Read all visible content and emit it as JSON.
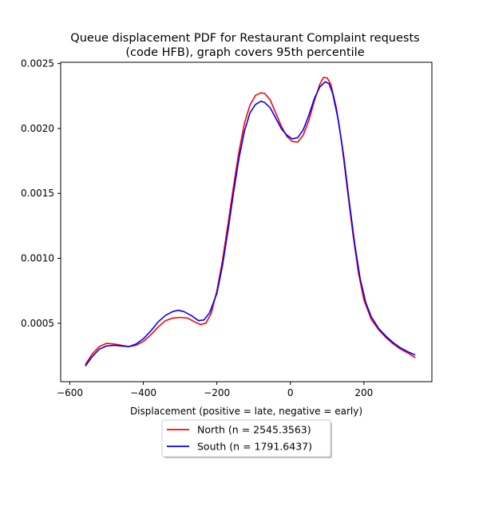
{
  "chart_data": {
    "type": "line",
    "title": "Queue displacement PDF for Restaurant Complaint  requests\n(code HFB), graph covers 95th percentile",
    "xlabel": "Displacement (positive = late, negative = early)",
    "ylabel": "",
    "xlim": [
      -625,
      385
    ],
    "ylim": [
      5e-05,
      0.00251
    ],
    "x_ticks": [
      -600,
      -400,
      -200,
      0,
      200
    ],
    "y_ticks": [
      0.0005,
      0.001,
      0.0015,
      0.002,
      0.0025
    ],
    "x_tick_labels": [
      "−600",
      "−400",
      "−200",
      "0",
      "200"
    ],
    "y_tick_labels": [
      "0.0005",
      "0.0010",
      "0.0015",
      "0.0020",
      "0.0025"
    ],
    "grid": false,
    "legend_position": "below-center",
    "series": [
      {
        "name": "North (n = 2545.3563)",
        "color": "#ff0000",
        "points": [
          [
            -558,
            0.00018
          ],
          [
            -540,
            0.00026
          ],
          [
            -520,
            0.00032
          ],
          [
            -500,
            0.000345
          ],
          [
            -480,
            0.00034
          ],
          [
            -460,
            0.00033
          ],
          [
            -440,
            0.00032
          ],
          [
            -420,
            0.00033
          ],
          [
            -400,
            0.00036
          ],
          [
            -380,
            0.00041
          ],
          [
            -360,
            0.00047
          ],
          [
            -340,
            0.00052
          ],
          [
            -320,
            0.00054
          ],
          [
            -300,
            0.000545
          ],
          [
            -280,
            0.00054
          ],
          [
            -260,
            0.00051
          ],
          [
            -245,
            0.00049
          ],
          [
            -230,
            0.0005
          ],
          [
            -215,
            0.00058
          ],
          [
            -200,
            0.00075
          ],
          [
            -185,
            0.00098
          ],
          [
            -170,
            0.00126
          ],
          [
            -155,
            0.00155
          ],
          [
            -140,
            0.00182
          ],
          [
            -125,
            0.00204
          ],
          [
            -110,
            0.00218
          ],
          [
            -95,
            0.002255
          ],
          [
            -80,
            0.002275
          ],
          [
            -70,
            0.00227
          ],
          [
            -55,
            0.00222
          ],
          [
            -40,
            0.00212
          ],
          [
            -25,
            0.00202
          ],
          [
            -10,
            0.00194
          ],
          [
            5,
            0.0019
          ],
          [
            20,
            0.001895
          ],
          [
            35,
            0.00195
          ],
          [
            50,
            0.00206
          ],
          [
            65,
            0.00221
          ],
          [
            80,
            0.00234
          ],
          [
            90,
            0.002393
          ],
          [
            100,
            0.00239
          ],
          [
            110,
            0.00234
          ],
          [
            125,
            0.00216
          ],
          [
            140,
            0.00188
          ],
          [
            155,
            0.00153
          ],
          [
            170,
            0.00119
          ],
          [
            185,
            0.00089
          ],
          [
            200,
            0.00068
          ],
          [
            220,
            0.00053
          ],
          [
            240,
            0.00045
          ],
          [
            260,
            0.00039
          ],
          [
            280,
            0.00034
          ],
          [
            300,
            0.0003
          ],
          [
            320,
            0.00027
          ],
          [
            340,
            0.000235
          ]
        ]
      },
      {
        "name": "South (n = 1791.6437)",
        "color": "#0000ff",
        "points": [
          [
            -558,
            0.00017
          ],
          [
            -540,
            0.00024
          ],
          [
            -520,
            0.0003
          ],
          [
            -500,
            0.000325
          ],
          [
            -480,
            0.00033
          ],
          [
            -460,
            0.000325
          ],
          [
            -440,
            0.00032
          ],
          [
            -420,
            0.00034
          ],
          [
            -400,
            0.00038
          ],
          [
            -380,
            0.00044
          ],
          [
            -360,
            0.00051
          ],
          [
            -340,
            0.00056
          ],
          [
            -320,
            0.00059
          ],
          [
            -305,
            0.0006
          ],
          [
            -290,
            0.00059
          ],
          [
            -270,
            0.00056
          ],
          [
            -250,
            0.00052
          ],
          [
            -235,
            0.000525
          ],
          [
            -220,
            0.00058
          ],
          [
            -200,
            0.00073
          ],
          [
            -185,
            0.00094
          ],
          [
            -170,
            0.00121
          ],
          [
            -155,
            0.0015
          ],
          [
            -140,
            0.00177
          ],
          [
            -125,
            0.00198
          ],
          [
            -110,
            0.00212
          ],
          [
            -95,
            0.002185
          ],
          [
            -80,
            0.00221
          ],
          [
            -70,
            0.0022
          ],
          [
            -55,
            0.00216
          ],
          [
            -40,
            0.00208
          ],
          [
            -25,
            0.002
          ],
          [
            -10,
            0.00195
          ],
          [
            5,
            0.00192
          ],
          [
            20,
            0.00193
          ],
          [
            35,
            0.00199
          ],
          [
            50,
            0.0021
          ],
          [
            65,
            0.00223
          ],
          [
            80,
            0.00232
          ],
          [
            95,
            0.00236
          ],
          [
            105,
            0.002345
          ],
          [
            115,
            0.00227
          ],
          [
            130,
            0.00207
          ],
          [
            145,
            0.00179
          ],
          [
            160,
            0.00144
          ],
          [
            175,
            0.00111
          ],
          [
            190,
            0.00084
          ],
          [
            205,
            0.00066
          ],
          [
            220,
            0.00055
          ],
          [
            240,
            0.00046
          ],
          [
            260,
            0.0004
          ],
          [
            280,
            0.00035
          ],
          [
            300,
            0.00031
          ],
          [
            320,
            0.00028
          ],
          [
            340,
            0.000255
          ]
        ]
      }
    ]
  }
}
